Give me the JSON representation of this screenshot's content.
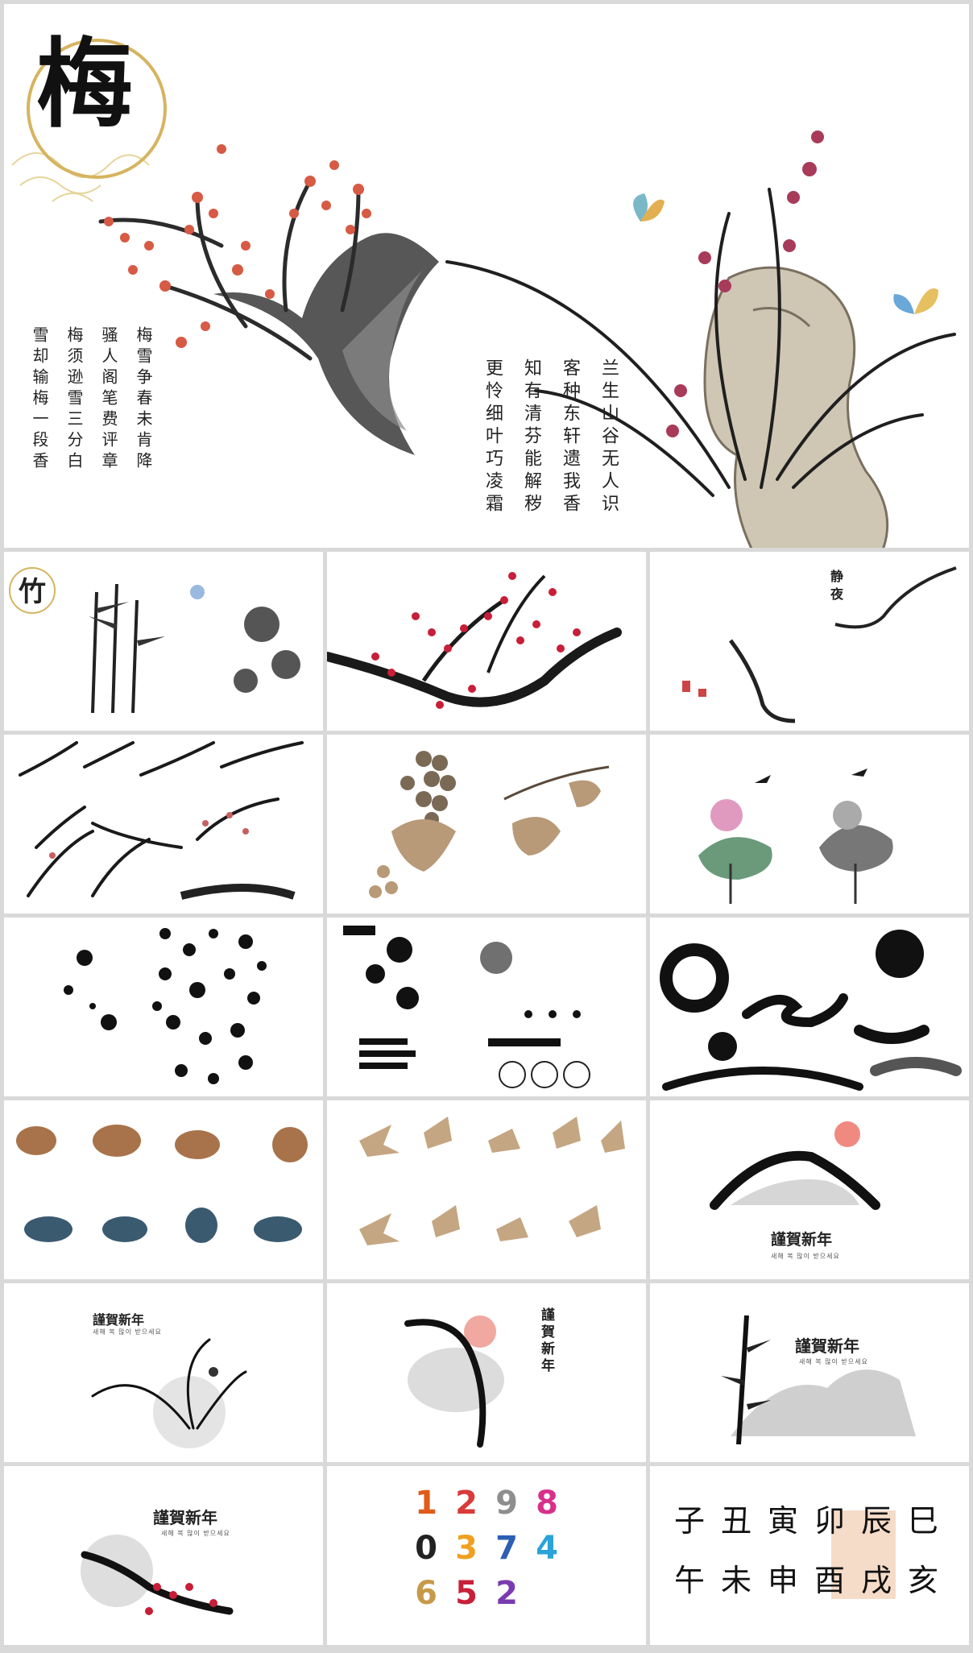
{
  "hero": {
    "seal_char": "梅",
    "poem_left": [
      "梅雪争春未肯降",
      "骚人阁笔费评章",
      "梅须逊雪三分白",
      "雪却输梅一段香"
    ],
    "poem_right": [
      "兰生山谷无人识",
      "客种东轩遗我香",
      "知有清芬能解秽",
      "更怜细叶巧凌霜"
    ]
  },
  "thumbs": {
    "bamboo_seal": "竹",
    "quiet_title": "静夜",
    "greeting_title": "謹賀新年",
    "greeting_sub": "새해 복 많이 받으세요",
    "greeting_vertical": "謹賀新年",
    "numbers": [
      "1",
      "2",
      "9",
      "8",
      "0",
      "3",
      "7",
      "4",
      "6",
      "5",
      "2"
    ],
    "number_colors": [
      "#e05a1a",
      "#d93a3a",
      "#8e8e8e",
      "#d8308a",
      "#222222",
      "#f0a020",
      "#2c5fb3",
      "#2aa3d8",
      "#c79a4a",
      "#c8203a",
      "#7a3ab0"
    ],
    "calligraphy": [
      "子",
      "丑",
      "寅",
      "卯",
      "辰",
      "巳",
      "午",
      "未",
      "申",
      "酉",
      "戌",
      "亥"
    ]
  }
}
